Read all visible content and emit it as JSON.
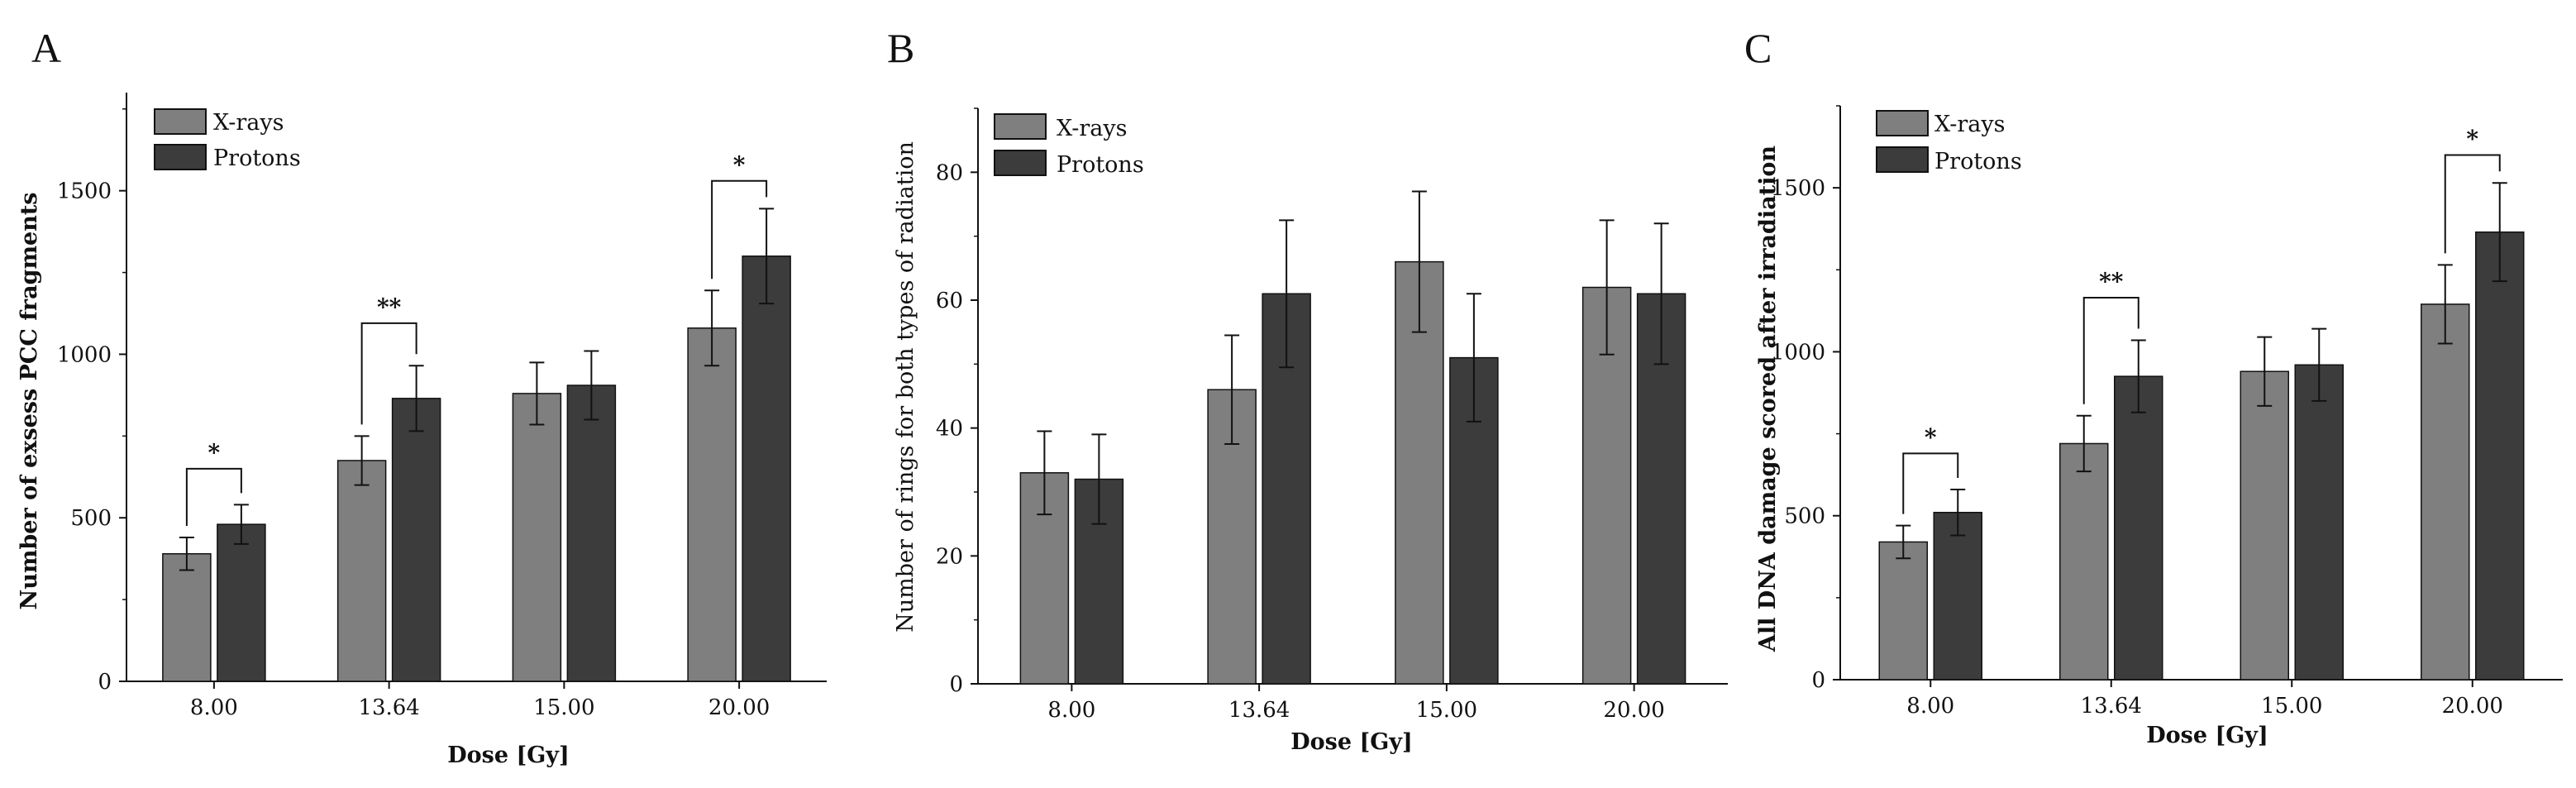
{
  "figure": {
    "colors": {
      "xrays": "#7f7f7f",
      "protons": "#3c3c3c",
      "axis": "#111111",
      "background": "#ffffff"
    }
  },
  "chart_data": [
    {
      "panel": "A",
      "type": "bar",
      "title": "",
      "xlabel": "Dose [Gy]",
      "ylabel": "Number of exsess PCC fragments",
      "categories": [
        "8.00",
        "13.64",
        "15.00",
        "20.00"
      ],
      "ylim": [
        0,
        1800
      ],
      "yticks": [
        0,
        500,
        1000,
        1500
      ],
      "legend": [
        "X-rays",
        "Protons"
      ],
      "legend_position": "top-left",
      "series": [
        {
          "name": "X-rays",
          "values": [
            390,
            675,
            880,
            1080
          ],
          "errors": [
            50,
            75,
            95,
            115
          ]
        },
        {
          "name": "Protons",
          "values": [
            480,
            865,
            905,
            1300
          ],
          "errors": [
            60,
            100,
            105,
            145
          ]
        }
      ],
      "significance": [
        {
          "category_index": 0,
          "label": "*",
          "bracket_top": 650
        },
        {
          "category_index": 1,
          "label": "**",
          "bracket_top": 1095
        },
        {
          "category_index": 3,
          "label": "*",
          "bracket_top": 1530
        }
      ]
    },
    {
      "panel": "B",
      "type": "bar",
      "title": "",
      "xlabel": "Dose [Gy]",
      "ylabel": "Number of rings for both types of radiation",
      "categories": [
        "8.00",
        "13.64",
        "15.00",
        "20.00"
      ],
      "ylim": [
        0,
        90
      ],
      "yticks": [
        0,
        20,
        40,
        60,
        80
      ],
      "legend": [
        "X-rays",
        "Protons"
      ],
      "legend_position": "top-left",
      "series": [
        {
          "name": "X-rays",
          "values": [
            33,
            46,
            66,
            62
          ],
          "errors": [
            6.5,
            8.5,
            11,
            10.5
          ]
        },
        {
          "name": "Protons",
          "values": [
            32,
            61,
            51,
            61
          ],
          "errors": [
            7,
            11.5,
            10,
            11
          ]
        }
      ],
      "significance": []
    },
    {
      "panel": "C",
      "type": "bar",
      "title": "",
      "xlabel": "Dose [Gy]",
      "ylabel": "All DNA damage scored after irradiation",
      "categories": [
        "8.00",
        "13.64",
        "15.00",
        "20.00"
      ],
      "ylim": [
        0,
        1750
      ],
      "yticks": [
        0,
        500,
        1000,
        1500
      ],
      "legend": [
        "X-rays",
        "Protons"
      ],
      "legend_position": "top-left",
      "series": [
        {
          "name": "X-rays",
          "values": [
            420,
            720,
            940,
            1145
          ],
          "errors": [
            50,
            85,
            105,
            120
          ]
        },
        {
          "name": "Protons",
          "values": [
            510,
            925,
            960,
            1365
          ],
          "errors": [
            70,
            110,
            110,
            150
          ]
        }
      ],
      "significance": [
        {
          "category_index": 0,
          "label": "*",
          "bracket_top": 690
        },
        {
          "category_index": 1,
          "label": "**",
          "bracket_top": 1165
        },
        {
          "category_index": 3,
          "label": "*",
          "bracket_top": 1600
        }
      ]
    }
  ]
}
